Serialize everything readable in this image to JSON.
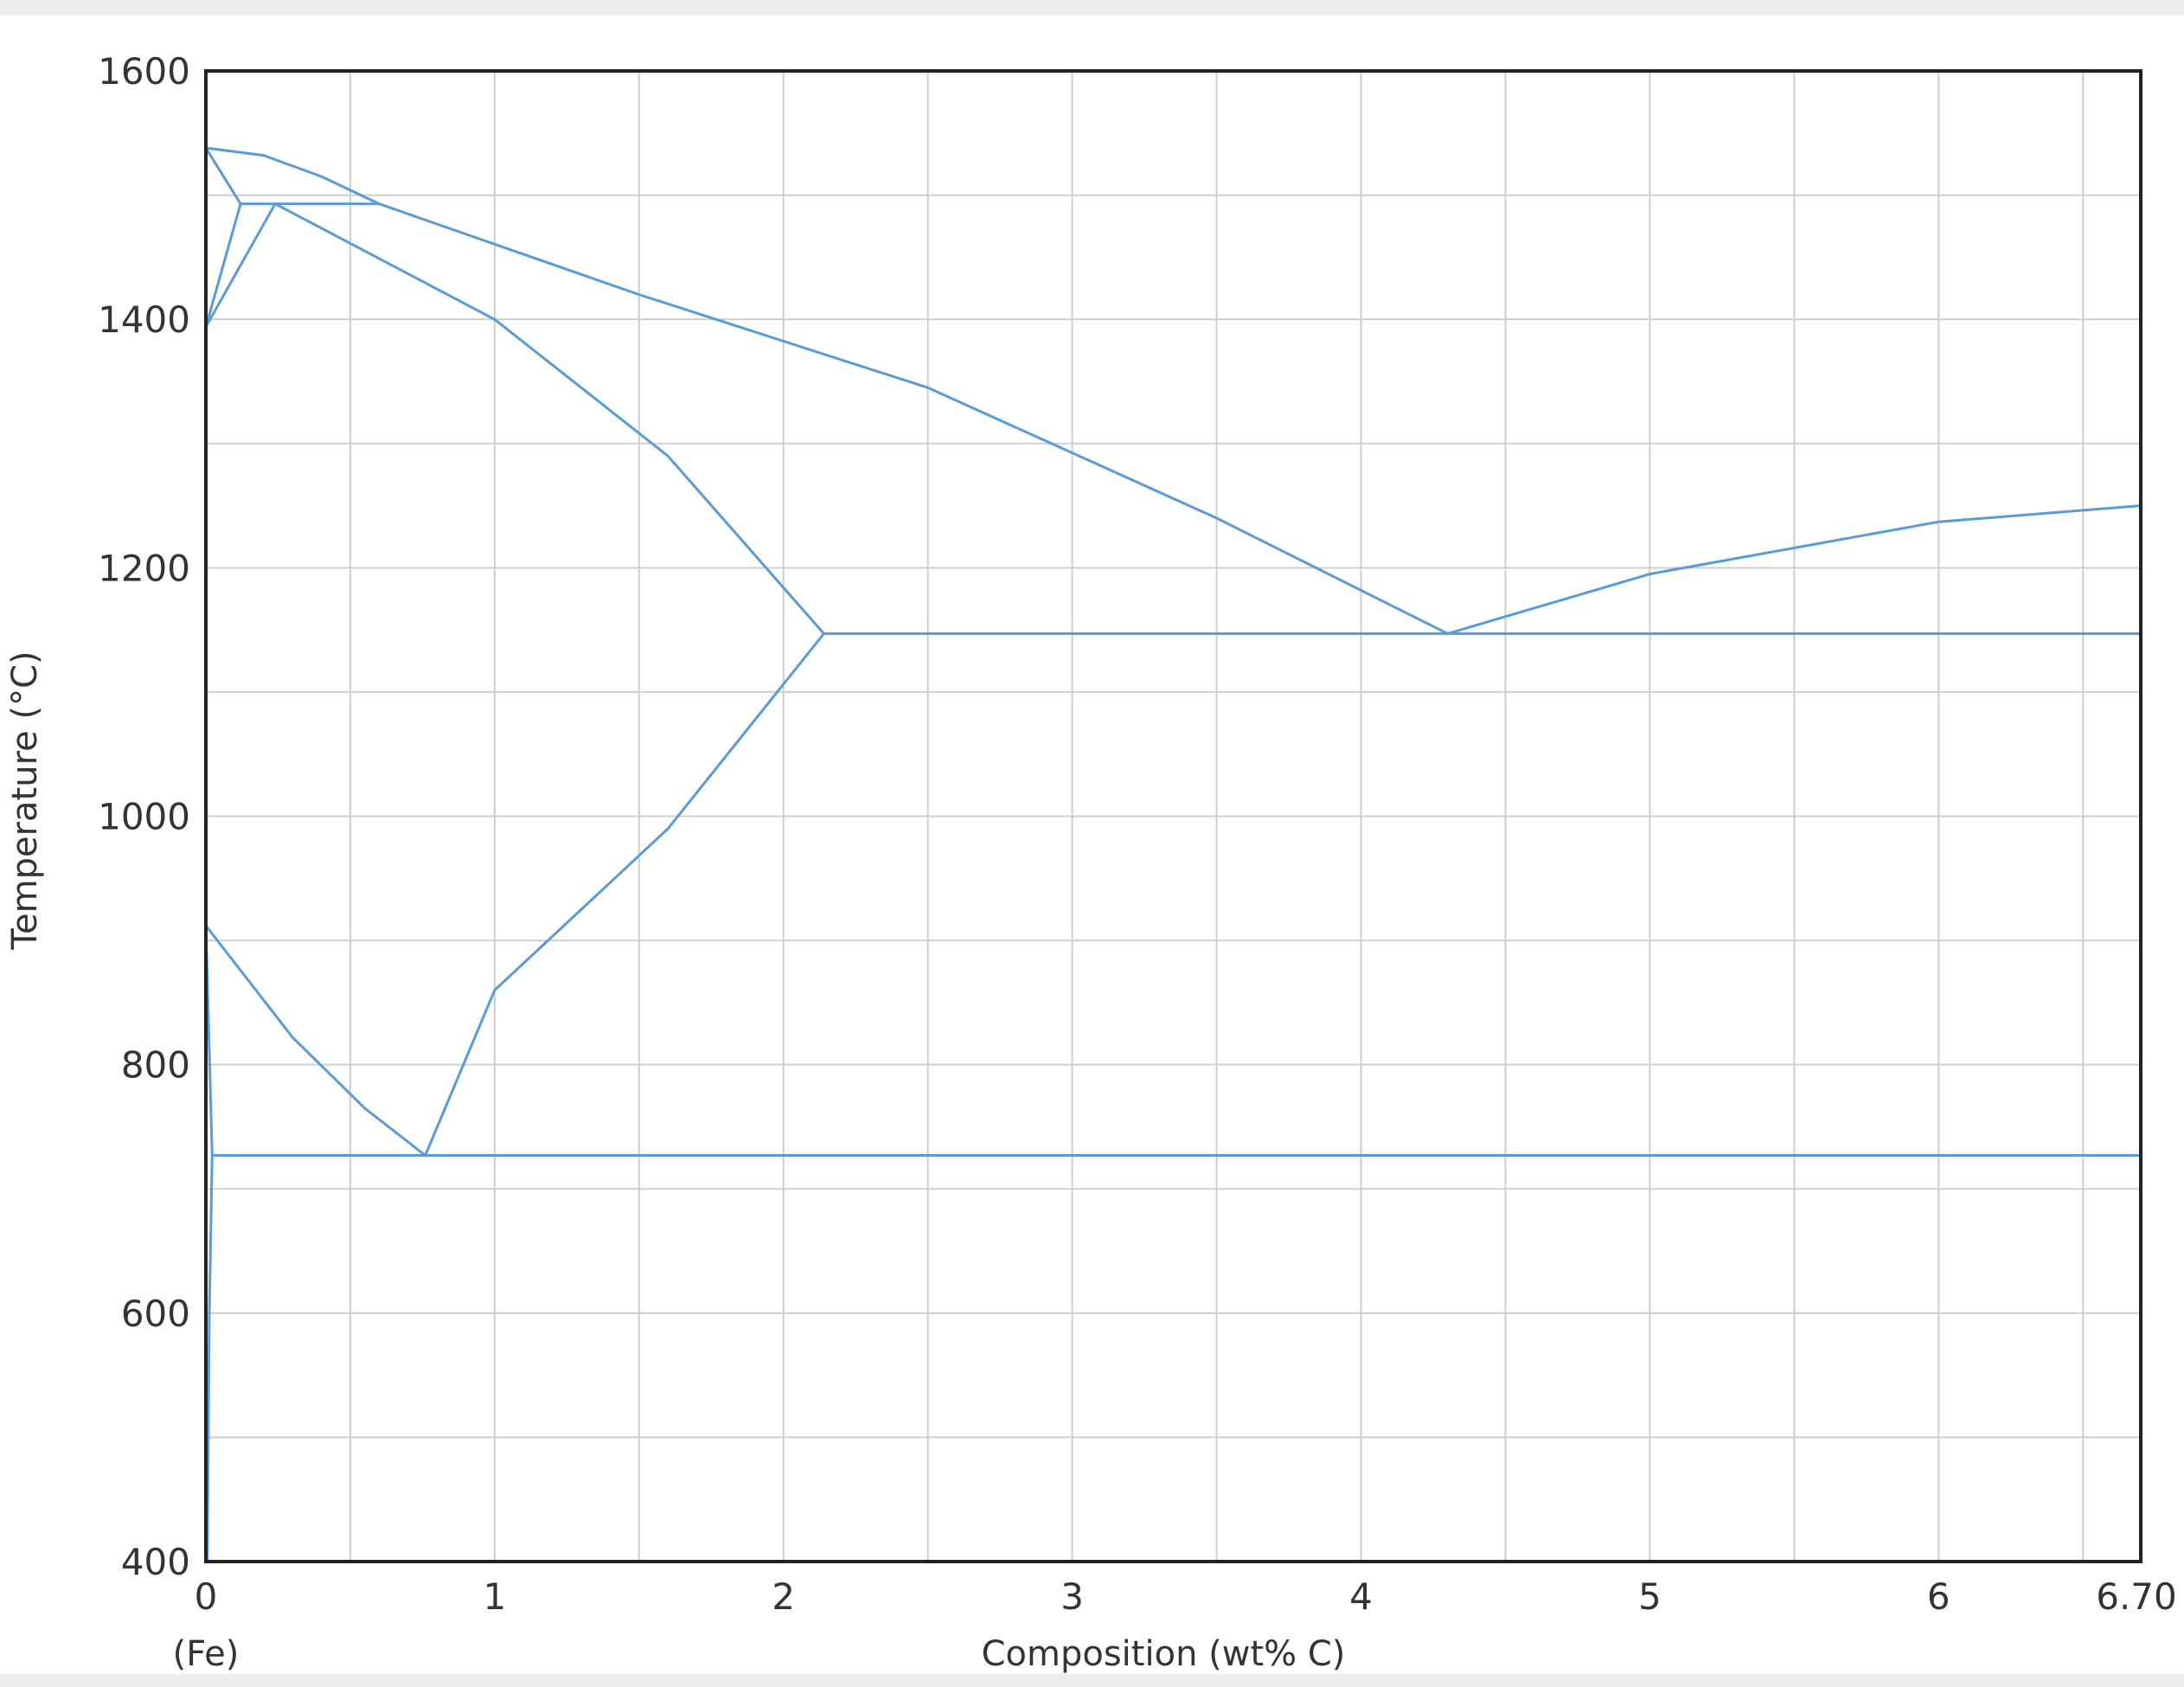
{
  "chart_data": {
    "type": "line",
    "xlabel": "Composition (wt% C)",
    "ylabel": "Temperature (°C)",
    "x_sub_label": "(Fe)",
    "xlim": [
      0,
      6.7
    ],
    "ylim": [
      400,
      1600
    ],
    "x_ticks": [
      "0",
      "1",
      "2",
      "3",
      "4",
      "5",
      "6",
      "6.70"
    ],
    "x_tick_values": [
      0,
      1,
      2,
      3,
      4,
      5,
      6,
      6.7
    ],
    "y_ticks": [
      "400",
      "600",
      "800",
      "1000",
      "1200",
      "1400",
      "1600"
    ],
    "y_tick_values": [
      400,
      600,
      800,
      1000,
      1200,
      1400,
      1600
    ],
    "grid": true,
    "line_color": "#5b9bd5",
    "series": [
      {
        "values": [
          [
            0,
            1538
          ],
          [
            0.2,
            1532
          ],
          [
            0.4,
            1515
          ],
          [
            0.6,
            1493
          ]
        ]
      },
      {
        "values": [
          [
            0,
            1538
          ],
          [
            0.12,
            1493
          ]
        ]
      },
      {
        "values": [
          [
            0.12,
            1493
          ],
          [
            0,
            1394
          ]
        ]
      },
      {
        "values": [
          [
            0.24,
            1493
          ],
          [
            0,
            1394
          ]
        ]
      },
      {
        "values": [
          [
            0.12,
            1493
          ],
          [
            0.6,
            1493
          ]
        ]
      },
      {
        "values": [
          [
            0.24,
            1493
          ],
          [
            1.0,
            1400
          ],
          [
            1.6,
            1290
          ],
          [
            2.14,
            1147
          ]
        ]
      },
      {
        "values": [
          [
            0.6,
            1493
          ],
          [
            1.5,
            1420
          ],
          [
            2.5,
            1345
          ],
          [
            3.5,
            1240
          ],
          [
            4.3,
            1147
          ]
        ]
      },
      {
        "values": [
          [
            4.3,
            1147
          ],
          [
            5.0,
            1195
          ],
          [
            6.0,
            1237
          ],
          [
            6.7,
            1250
          ]
        ]
      },
      {
        "values": [
          [
            2.14,
            1147
          ],
          [
            6.7,
            1147
          ]
        ]
      },
      {
        "values": [
          [
            2.14,
            1147
          ],
          [
            1.6,
            990
          ],
          [
            1.0,
            860
          ],
          [
            0.76,
            727
          ]
        ]
      },
      {
        "values": [
          [
            0,
            912
          ],
          [
            0.3,
            822
          ],
          [
            0.55,
            765
          ],
          [
            0.76,
            727
          ]
        ]
      },
      {
        "values": [
          [
            0,
            912
          ],
          [
            0.022,
            727
          ]
        ]
      },
      {
        "values": [
          [
            0.022,
            727
          ],
          [
            6.7,
            727
          ]
        ]
      },
      {
        "values": [
          [
            0.022,
            727
          ],
          [
            0.012,
            600
          ],
          [
            0.005,
            400
          ]
        ]
      }
    ]
  }
}
